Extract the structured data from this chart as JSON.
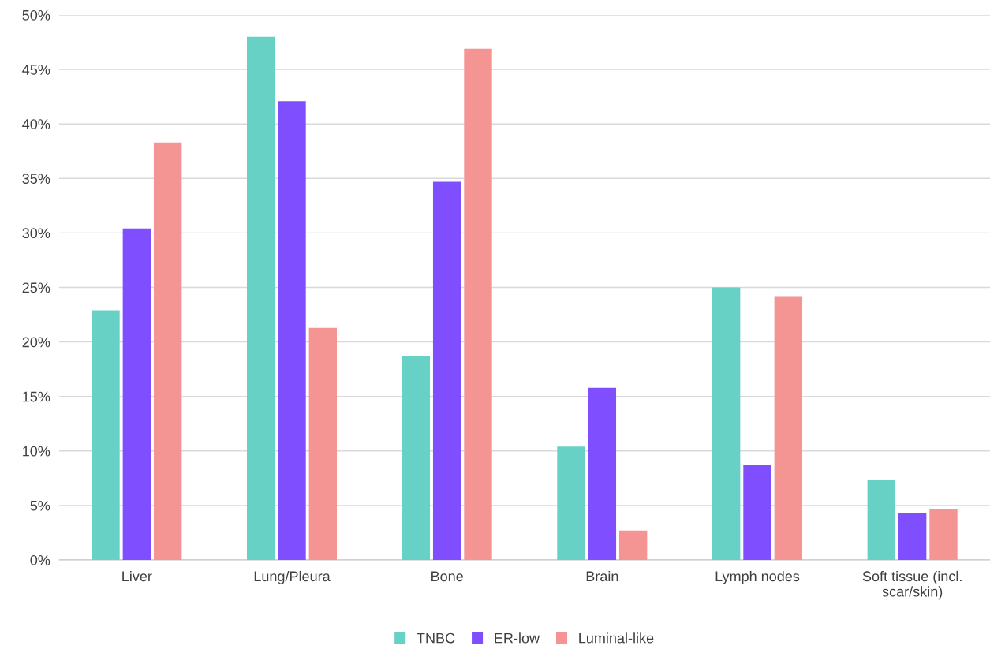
{
  "chart_data": {
    "type": "bar",
    "categories": [
      "Liver",
      "Lung/Pleura",
      "Bone",
      "Brain",
      "Lymph nodes",
      "Soft tissue (incl.\nscar/skin)"
    ],
    "series": [
      {
        "name": "TNBC",
        "color": "#66d1c4",
        "values": [
          22.9,
          48.0,
          18.7,
          10.4,
          25.0,
          7.3
        ]
      },
      {
        "name": "ER-low",
        "color": "#7f4fff",
        "values": [
          30.4,
          42.1,
          34.7,
          15.8,
          8.7,
          4.3
        ]
      },
      {
        "name": "Luminal-like",
        "color": "#f49493",
        "values": [
          38.3,
          21.3,
          46.9,
          2.7,
          24.2,
          4.7
        ]
      }
    ],
    "ylim": [
      0,
      50
    ],
    "yticks": [
      {
        "value": 0,
        "label": "0%"
      },
      {
        "value": 5,
        "label": "5%"
      },
      {
        "value": 10,
        "label": "10%"
      },
      {
        "value": 15,
        "label": "15%"
      },
      {
        "value": 20,
        "label": "20%"
      },
      {
        "value": 25,
        "label": "25%"
      },
      {
        "value": 30,
        "label": "30%"
      },
      {
        "value": 35,
        "label": "35%"
      },
      {
        "value": 40,
        "label": "40%"
      },
      {
        "value": 45,
        "label": "45%"
      },
      {
        "value": 50,
        "label": "50%"
      }
    ],
    "grid": "y",
    "legend": "bottom"
  }
}
